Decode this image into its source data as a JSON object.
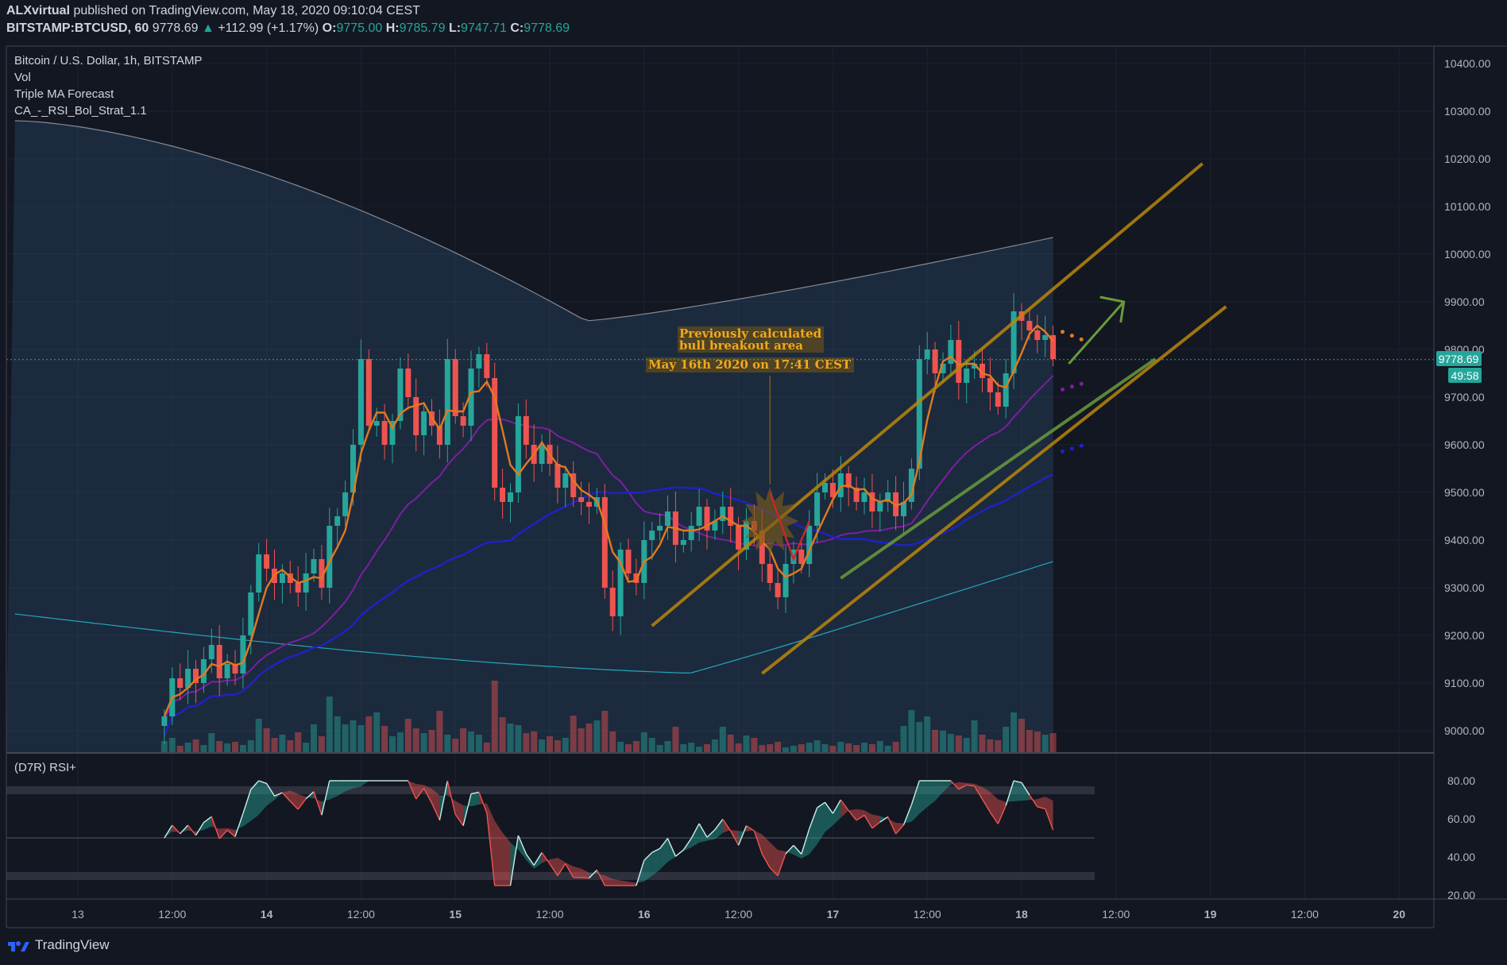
{
  "header": {
    "author": "ALXvirtual",
    "published": "published on TradingView.com, May 18, 2020 09:10:04 CEST",
    "symbol": "BITSTAMP:BTCUSD, 60",
    "last": "9778.69",
    "change": "+112.99 (+1.17%)",
    "o_label": "O:",
    "o": "9775.00",
    "h_label": "H:",
    "h": "9785.79",
    "l_label": "L:",
    "l": "9747.71",
    "c_label": "C:",
    "c": "9778.69"
  },
  "legend": {
    "title": "Bitcoin / U.S. Dollar, 1h, BITSTAMP",
    "vol": "Vol",
    "triple_ma": "Triple MA Forecast",
    "strategy": "CA_-_RSI_Bol_Strat_1.1"
  },
  "rsi_pane": {
    "label": "(D7R) RSI+"
  },
  "price_tag": {
    "price": "9778.69",
    "countdown": "49:58"
  },
  "annotation": {
    "line1": "Previously calculated",
    "line2": "bull breakout area",
    "line3": "May 16th 2020 on 17:41 CEST"
  },
  "brand": {
    "name": "TradingView"
  },
  "colors": {
    "background": "#131722",
    "up": "#26a69a",
    "down": "#ef5350",
    "channel": "#b8860b",
    "ma_fast": "#e07a1f",
    "ma_mid": "#7b1fa2",
    "ma_slow": "#1e22c8",
    "ma_long": "#26c6da",
    "bollinger": "#b2b5be",
    "forecast_arrow": "#6a9a3c"
  },
  "chart_data": {
    "type": "candlestick",
    "price_axis": {
      "ticks": [
        "10400.00",
        "10300.00",
        "10200.00",
        "10100.00",
        "10000.00",
        "9900.00",
        "9800.00",
        "9700.00",
        "9600.00",
        "9500.00",
        "9400.00",
        "9300.00",
        "9200.00",
        "9100.00",
        "9000.00"
      ],
      "range": [
        8960,
        10440
      ]
    },
    "rsi_axis": {
      "ticks": [
        "80.00",
        "60.00",
        "40.00",
        "20.00"
      ],
      "range": [
        19,
        83
      ],
      "bands": [
        75,
        30
      ]
    },
    "time_axis": {
      "ticks": [
        {
          "label": "13",
          "hour": 24,
          "bold": false
        },
        {
          "label": "12:00",
          "hour": 36,
          "bold": false
        },
        {
          "label": "14",
          "hour": 48,
          "bold": true
        },
        {
          "label": "12:00",
          "hour": 60,
          "bold": false
        },
        {
          "label": "15",
          "hour": 72,
          "bold": true
        },
        {
          "label": "12:00",
          "hour": 84,
          "bold": false
        },
        {
          "label": "16",
          "hour": 96,
          "bold": true
        },
        {
          "label": "12:00",
          "hour": 108,
          "bold": false
        },
        {
          "label": "17",
          "hour": 120,
          "bold": true
        },
        {
          "label": "12:00",
          "hour": 132,
          "bold": false
        },
        {
          "label": "18",
          "hour": 144,
          "bold": true
        },
        {
          "label": "12:00",
          "hour": 156,
          "bold": false
        },
        {
          "label": "19",
          "hour": 168,
          "bold": true
        },
        {
          "label": "12:00",
          "hour": 180,
          "bold": false
        },
        {
          "label": "20",
          "hour": 192,
          "bold": true
        }
      ]
    },
    "first_bar_hour": 35,
    "close": [
      9030,
      9110,
      9090,
      9130,
      9100,
      9150,
      9180,
      9110,
      9140,
      9120,
      9200,
      9290,
      9370,
      9340,
      9310,
      9330,
      9310,
      9290,
      9330,
      9360,
      9300,
      9430,
      9450,
      9500,
      9600,
      9780,
      9640,
      9650,
      9600,
      9650,
      9760,
      9700,
      9620,
      9670,
      9640,
      9600,
      9780,
      9660,
      9640,
      9760,
      9790,
      9740,
      9510,
      9480,
      9500,
      9660,
      9600,
      9560,
      9600,
      9560,
      9510,
      9540,
      9490,
      9480,
      9470,
      9490,
      9300,
      9240,
      9380,
      9330,
      9310,
      9400,
      9420,
      9430,
      9460,
      9390,
      9400,
      9430,
      9470,
      9420,
      9440,
      9470,
      9430,
      9380,
      9440,
      9420,
      9350,
      9310,
      9280,
      9350,
      9380,
      9350,
      9430,
      9500,
      9520,
      9490,
      9540,
      9510,
      9480,
      9500,
      9460,
      9480,
      9500,
      9450,
      9480,
      9550,
      9780,
      9800,
      9750,
      9770,
      9820,
      9730,
      9760,
      9770,
      9740,
      9710,
      9680,
      9750,
      9880,
      9860,
      9840,
      9820,
      9830,
      9780
    ],
    "volume": [
      14,
      18,
      8,
      12,
      16,
      9,
      24,
      14,
      11,
      13,
      9,
      15,
      42,
      30,
      18,
      22,
      15,
      25,
      12,
      35,
      20,
      70,
      45,
      35,
      40,
      34,
      45,
      50,
      33,
      20,
      25,
      42,
      30,
      24,
      28,
      52,
      22,
      17,
      30,
      26,
      22,
      12,
      90,
      44,
      36,
      34,
      24,
      26,
      16,
      20,
      15,
      18,
      46,
      30,
      36,
      40,
      52,
      26,
      13,
      10,
      14,
      25,
      18,
      9,
      14,
      32,
      10,
      12,
      7,
      10,
      16,
      32,
      22,
      11,
      21,
      18,
      9,
      10,
      13,
      6,
      8,
      10,
      12,
      15,
      10,
      8,
      13,
      11,
      9,
      12,
      10,
      14,
      8,
      13,
      33,
      53,
      38,
      45,
      28,
      27,
      23,
      21,
      18,
      40,
      22,
      16,
      15,
      32,
      50,
      42,
      28,
      26,
      22,
      24
    ],
    "ma_fast_end": 9845,
    "ma_mid_end": 9710,
    "ma_slow_end": 9580,
    "ma_long_end": 9355,
    "bollinger_upper_end": 10035,
    "rsi_last": 58,
    "channel_lines": [
      {
        "from": [
          97,
          9220
        ],
        "to": [
          167,
          10190
        ]
      },
      {
        "from": [
          111,
          9120
        ],
        "to": [
          170,
          9890
        ]
      },
      {
        "from": [
          121,
          9320
        ],
        "to": [
          161,
          9780
        ]
      }
    ],
    "last_price": 9778.69
  }
}
